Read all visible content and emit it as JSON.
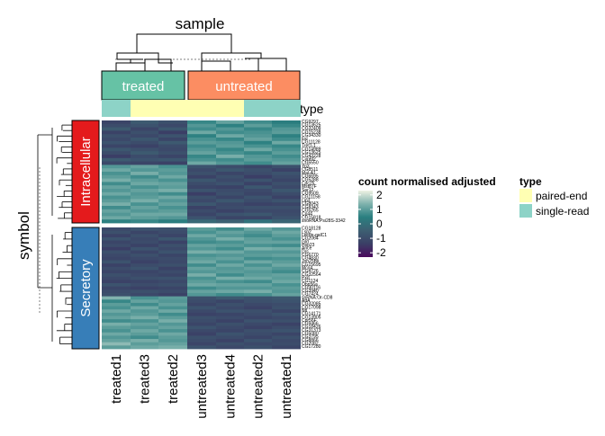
{
  "chart_data": {
    "type": "heatmap",
    "title": "sample",
    "ylabel": "symbol",
    "colorbar": {
      "title": "count normalised adjusted",
      "ticks": [
        2,
        1,
        0,
        -1,
        -2
      ],
      "range": [
        -2.3,
        2.3
      ],
      "colors": [
        "#4b0a5e",
        "#3b3f66",
        "#3d5f72",
        "#2a7f80",
        "#7fb2ad",
        "#eef2e3"
      ]
    },
    "type_legend": {
      "title": "type",
      "items": [
        {
          "label": "paired-end",
          "color": "#ffffb3"
        },
        {
          "label": "single-read",
          "color": "#8dd3c7"
        }
      ]
    },
    "column_groups": [
      {
        "label": "treated",
        "color": "#66c2a5",
        "columns": [
          "treated1",
          "treated3",
          "treated2"
        ]
      },
      {
        "label": "untreated",
        "color": "#fc8d62",
        "columns": [
          "untreated3",
          "untreated4",
          "untreated2",
          "untreated1"
        ]
      }
    ],
    "columns": [
      "treated1",
      "treated3",
      "treated2",
      "untreated3",
      "untreated4",
      "untreated2",
      "untreated1"
    ],
    "column_types": [
      "single-read",
      "paired-end",
      "paired-end",
      "paired-end",
      "paired-end",
      "single-read",
      "single-read"
    ],
    "type_row_label": "type",
    "row_groups": [
      {
        "label": "Intracellular",
        "color": "#e41a1c",
        "genes": [
          "CG9297",
          "CG13625",
          "CG32409",
          "CG15238",
          "CG34330",
          "Fsl",
          "CG11128",
          "Tret1-1",
          "CG14989",
          "CG13625",
          "CG43228",
          "Cyp6t2",
          "CG5550",
          "Yp3",
          "CG8511",
          "Mal-A1",
          "CG6695",
          "CG5288",
          "Cdc25",
          "Mst87F",
          "Ser12",
          "CG9509",
          "CG11158",
          "Lip3",
          "CG8043",
          "CG8343",
          "CG5265",
          "Cp44",
          "CG15818",
          "snoRNA:Psi28S-3342"
        ],
        "values": [
          [
            -1.2,
            -0.6,
            -0.9,
            0.6,
            1.1,
            0.7,
            0.4
          ],
          [
            -1.0,
            -0.8,
            -1.1,
            0.9,
            0.5,
            1.0,
            0.6
          ],
          [
            -0.6,
            -1.2,
            -0.7,
            0.7,
            0.9,
            0.6,
            0.9
          ],
          [
            -1.3,
            -0.9,
            -1.4,
            1.2,
            0.7,
            0.8,
            1.0
          ],
          [
            -0.9,
            -1.1,
            -0.8,
            0.5,
            1.2,
            0.9,
            0.5
          ],
          [
            -1.1,
            -0.7,
            -1.2,
            0.8,
            0.6,
            1.1,
            0.7
          ],
          [
            -0.8,
            -1.0,
            -0.6,
            1.0,
            0.9,
            0.5,
            1.2
          ],
          [
            -1.2,
            -1.3,
            -1.0,
            0.7,
            1.0,
            0.8,
            0.6
          ],
          [
            -0.7,
            -0.9,
            -1.1,
            0.9,
            0.6,
            1.2,
            0.8
          ],
          [
            -1.0,
            -0.6,
            -0.9,
            1.1,
            0.8,
            0.6,
            1.0
          ],
          [
            -1.4,
            -1.0,
            -1.2,
            0.6,
            1.3,
            0.9,
            0.7
          ],
          [
            -0.6,
            -0.8,
            -0.7,
            0.8,
            0.7,
            1.0,
            0.9
          ],
          [
            -1.1,
            -1.2,
            -1.3,
            1.2,
            0.9,
            0.7,
            1.1
          ],
          [
            0.9,
            1.1,
            0.8,
            -0.8,
            -1.0,
            -1.2,
            -0.9
          ],
          [
            1.2,
            0.9,
            1.0,
            -1.1,
            -0.7,
            -0.9,
            -1.3
          ],
          [
            0.8,
            1.3,
            0.9,
            -0.9,
            -1.2,
            -1.0,
            -0.8
          ],
          [
            1.0,
            0.7,
            1.2,
            -1.3,
            -0.9,
            -1.4,
            -1.0
          ],
          [
            1.3,
            1.0,
            0.8,
            -0.7,
            -1.1,
            -0.8,
            -1.2
          ],
          [
            0.7,
            1.2,
            1.1,
            -1.0,
            -0.8,
            -1.3,
            -0.9
          ],
          [
            1.1,
            0.8,
            1.0,
            -1.2,
            -1.3,
            -0.7,
            -1.1
          ],
          [
            0.9,
            1.1,
            1.3,
            -0.8,
            -1.0,
            -1.1,
            -0.7
          ],
          [
            1.2,
            0.9,
            0.7,
            -1.4,
            -0.9,
            -1.2,
            -1.0
          ],
          [
            0.8,
            1.0,
            1.2,
            -0.9,
            -1.2,
            -0.8,
            -1.3
          ],
          [
            1.0,
            1.3,
            0.9,
            -1.1,
            -0.7,
            -1.0,
            -0.8
          ],
          [
            1.3,
            0.8,
            1.1,
            -0.7,
            -1.1,
            -1.3,
            -1.2
          ],
          [
            0.7,
            1.1,
            0.8,
            -1.3,
            -1.0,
            -0.9,
            -0.9
          ],
          [
            1.1,
            0.9,
            1.0,
            -1.0,
            -1.3,
            -1.1,
            -1.1
          ],
          [
            0.9,
            1.2,
            1.2,
            -1.2,
            -0.8,
            -0.7,
            -1.0
          ],
          [
            1.2,
            1.0,
            0.9,
            -0.8,
            -1.2,
            -1.2,
            -0.8
          ],
          [
            0.5,
            0.6,
            0.4,
            -0.2,
            -0.4,
            0.1,
            -0.3
          ]
        ]
      },
      {
        "label": "Secretory",
        "color": "#377eb8",
        "genes": [
          "CG18128",
          "Lsp2",
          "Lectin-galC1",
          "CG2064",
          "Gld",
          "Hsp23",
          "Ance",
          "Drs",
          "CG6770",
          "CG4830",
          "Jon25Bii",
          "CG15695",
          "Mco4",
          "CG4726",
          "CG32564",
          "Pxd",
          "CG1124",
          "Obp56a",
          "CG30116",
          "CG3940",
          "CG7424",
          "snRNA:Or-CD8",
          "AttA",
          "CG32085",
          "CG17098",
          "Ntl",
          "CG14171",
          "CG13905",
          "Cpr56F",
          "CG9466",
          "CG18426",
          "CG31373",
          "CG5080",
          "CG3795",
          "CG8866",
          "CG2082",
          "CG17280"
        ],
        "values": [
          [
            -1.1,
            -0.8,
            -0.9,
            1.0,
            0.7,
            1.2,
            0.9
          ],
          [
            -0.9,
            -1.2,
            -1.0,
            0.8,
            1.1,
            0.9,
            1.2
          ],
          [
            -1.3,
            -0.9,
            -1.2,
            1.2,
            0.9,
            0.7,
            1.0
          ],
          [
            -0.8,
            -1.1,
            -0.7,
            0.9,
            1.3,
            1.0,
            0.8
          ],
          [
            -1.2,
            -1.0,
            -1.3,
            0.7,
            0.8,
            1.1,
            1.1
          ],
          [
            -1.0,
            -1.3,
            -0.9,
            1.1,
            1.0,
            0.8,
            0.7
          ],
          [
            -1.4,
            -0.8,
            -1.1,
            0.9,
            0.7,
            1.3,
            1.2
          ],
          [
            -0.9,
            -1.2,
            -0.8,
            1.3,
            1.2,
            0.9,
            0.9
          ],
          [
            -1.1,
            -0.9,
            -1.2,
            0.8,
            0.9,
            1.0,
            1.1
          ],
          [
            -1.2,
            -1.1,
            -1.0,
            1.0,
            1.1,
            0.7,
            0.8
          ],
          [
            -0.8,
            -1.3,
            -1.1,
            1.2,
            0.8,
            1.2,
            1.0
          ],
          [
            -1.3,
            -1.0,
            -0.9,
            0.7,
            1.2,
            0.8,
            1.2
          ],
          [
            -1.0,
            -0.8,
            -1.3,
            1.1,
            0.9,
            1.1,
            0.9
          ],
          [
            -1.2,
            -1.2,
            -1.0,
            0.9,
            1.0,
            0.9,
            0.7
          ],
          [
            -0.9,
            -1.1,
            -1.2,
            1.3,
            0.7,
            1.0,
            1.1
          ],
          [
            -1.1,
            -0.9,
            -0.8,
            0.8,
            1.3,
            1.2,
            1.0
          ],
          [
            -1.3,
            -1.2,
            -1.1,
            1.0,
            0.8,
            0.7,
            1.2
          ],
          [
            -0.8,
            -1.0,
            -0.9,
            1.2,
            1.1,
            1.1,
            0.8
          ],
          [
            -1.2,
            -1.3,
            -1.2,
            0.7,
            0.9,
            0.9,
            1.0
          ],
          [
            -1.0,
            -0.9,
            -1.0,
            1.1,
            1.2,
            1.3,
            0.9
          ],
          [
            -0.9,
            -1.1,
            -1.3,
            0.9,
            0.7,
            0.8,
            1.1
          ],
          [
            1.4,
            0.8,
            1.0,
            -0.9,
            -0.6,
            -0.8,
            -0.7
          ],
          [
            0.6,
            1.1,
            0.9,
            -1.0,
            -1.2,
            -0.9,
            -0.8
          ],
          [
            1.0,
            0.7,
            1.1,
            -1.2,
            -0.9,
            -1.1,
            -1.0
          ],
          [
            0.8,
            1.2,
            0.8,
            -0.8,
            -1.1,
            -1.3,
            -0.9
          ],
          [
            1.2,
            0.9,
            1.2,
            -1.1,
            -0.8,
            -0.9,
            -1.2
          ],
          [
            0.9,
            1.0,
            0.7,
            -1.3,
            -1.2,
            -1.0,
            -0.8
          ],
          [
            1.1,
            1.3,
            1.0,
            -0.9,
            -1.0,
            -1.2,
            -1.1
          ],
          [
            0.7,
            0.8,
            1.3,
            -1.0,
            -1.3,
            -0.8,
            -0.9
          ],
          [
            1.3,
            1.1,
            0.9,
            -1.2,
            -0.9,
            -1.1,
            -1.3
          ],
          [
            1.0,
            0.9,
            1.1,
            -0.8,
            -1.1,
            -1.3,
            -1.0
          ],
          [
            0.8,
            1.2,
            0.8,
            -1.1,
            -1.2,
            -0.9,
            -0.8
          ],
          [
            1.2,
            1.0,
            1.2,
            -1.3,
            -0.8,
            -1.0,
            -1.2
          ],
          [
            0.9,
            0.7,
            1.0,
            -0.9,
            -1.0,
            -1.2,
            -0.9
          ],
          [
            1.1,
            1.3,
            0.9,
            -1.0,
            -1.3,
            -0.8,
            -1.1
          ],
          [
            1.5,
            1.0,
            1.1,
            -1.2,
            -0.9,
            -1.1,
            -1.0
          ],
          [
            1.0,
            1.2,
            1.3,
            -0.8,
            -1.1,
            -0.9,
            -1.2
          ]
        ]
      }
    ]
  }
}
